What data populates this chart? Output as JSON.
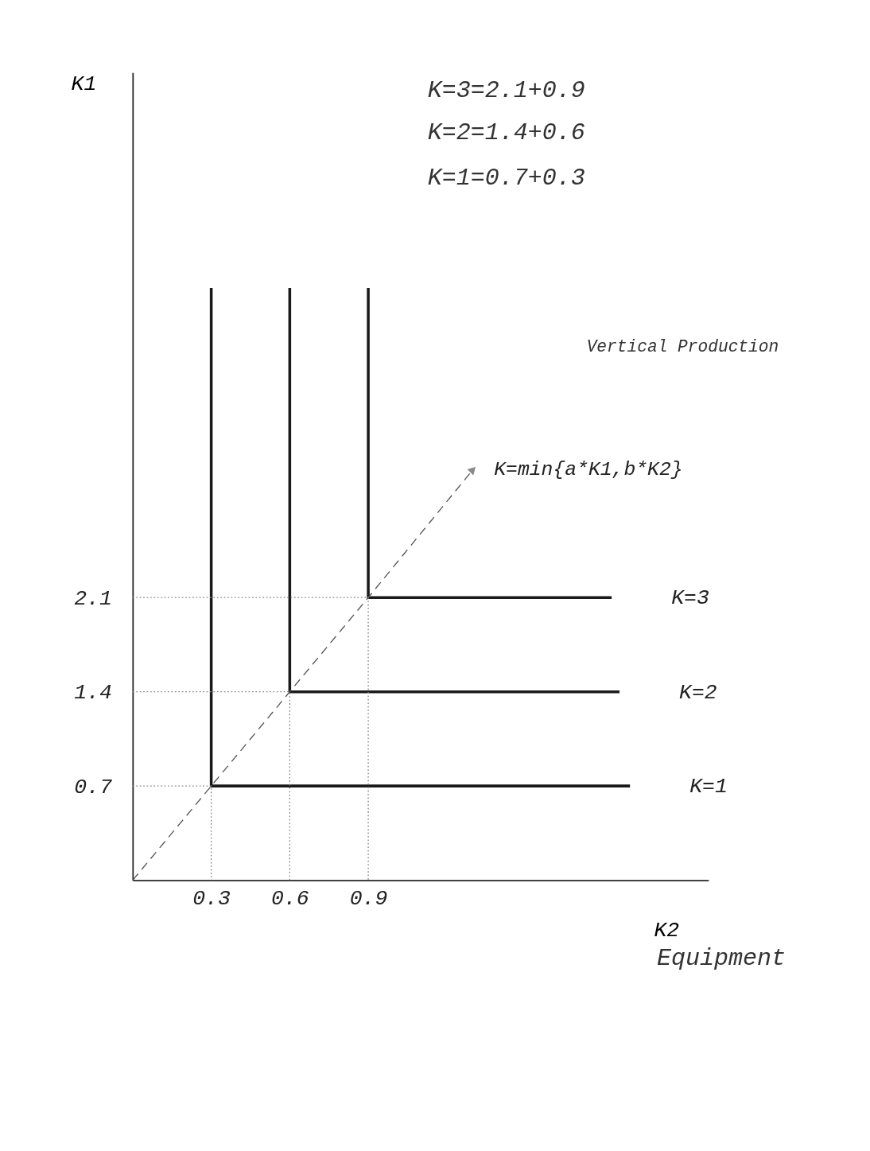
{
  "chart_data": {
    "type": "line",
    "xlabel": "K2",
    "ylabel": "K1",
    "xlim": [
      0,
      2.2
    ],
    "ylim": [
      0,
      6
    ],
    "xticks": [
      0.3,
      0.6,
      0.9
    ],
    "yticks": [
      0.7,
      1.4,
      2.1
    ],
    "grid": false,
    "legend": false,
    "marker": "none",
    "series": [
      {
        "name": "K=1",
        "color": "#1a1a1a",
        "x": [
          0.3,
          0.3,
          1.9
        ],
        "values": [
          4.4,
          0.7,
          0.7
        ]
      },
      {
        "name": "K=2",
        "color": "#1a1a1a",
        "x": [
          0.6,
          0.6,
          1.86
        ],
        "values": [
          4.4,
          1.4,
          1.4
        ]
      },
      {
        "name": "K=3",
        "color": "#1a1a1a",
        "x": [
          0.9,
          0.9,
          1.83
        ],
        "values": [
          4.4,
          2.1,
          2.1
        ]
      },
      {
        "color": "#555555",
        "line_style": "dashed",
        "x": [
          0,
          0.3,
          0.6,
          0.9,
          1.3
        ],
        "values": [
          0,
          0.7,
          1.4,
          2.1,
          3.05
        ]
      },
      {
        "color": "#888888",
        "line_style": "dotted",
        "x": [
          0,
          0.3,
          0.3
        ],
        "values": [
          0.7,
          0.7,
          0
        ]
      },
      {
        "color": "#888888",
        "line_style": "dotted",
        "x": [
          0,
          0.6,
          0.6
        ],
        "values": [
          1.4,
          1.4,
          0
        ]
      },
      {
        "color": "#888888",
        "line_style": "dotted",
        "x": [
          0,
          0.9,
          0.9
        ],
        "values": [
          2.1,
          2.1,
          0
        ]
      }
    ],
    "annotations": [
      {
        "text": "K=min{a*K1,b*K2}",
        "x": 1.3,
        "y": 3.05
      },
      "K=3=2.1+0.9",
      "K=2=1.4+0.6",
      "K=1=0.7+0.3",
      "Vertical Production",
      "Equipment"
    ]
  }
}
